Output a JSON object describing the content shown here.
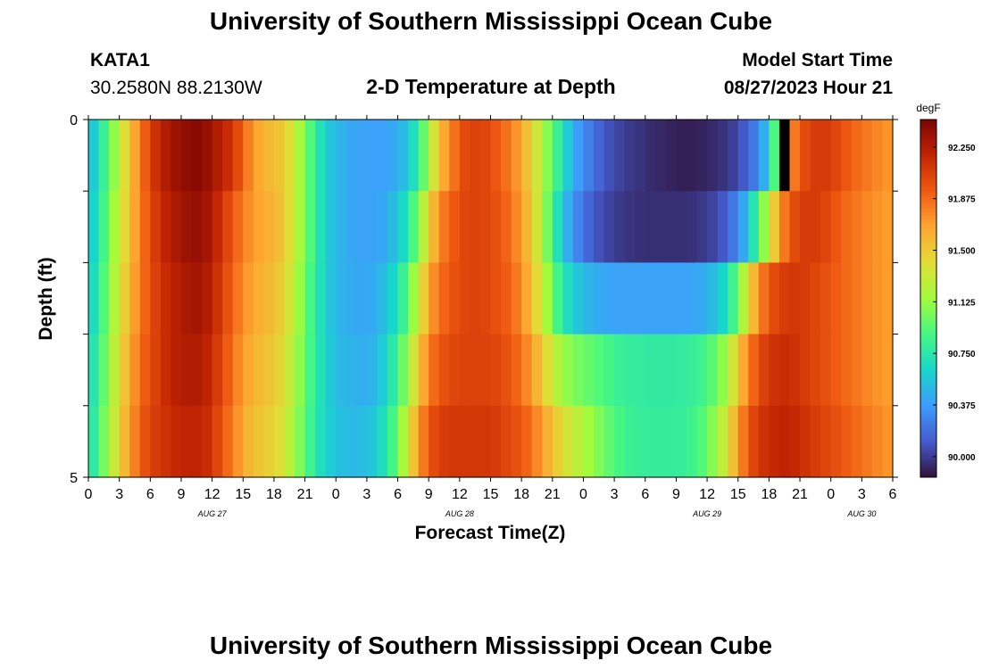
{
  "header": {
    "title": "University of Southern Mississippi Ocean Cube",
    "station_id": "KATA1",
    "station_coords": "30.2580N  88.2130W",
    "chart_heading": "2-D Temperature at Depth",
    "model_start_label": "Model Start Time",
    "model_start_value": "08/27/2023 Hour 21"
  },
  "footer": {
    "title": "University of Southern Mississippi Ocean Cube"
  },
  "chart_data": {
    "type": "heatmap",
    "title": "2-D Temperature at Depth",
    "xlabel": "Forecast Time(Z)",
    "ylabel": "Depth (ft)",
    "x_start_hour": 0,
    "x_end_hour": 78,
    "x_tick_labels": [
      "0",
      "3",
      "6",
      "9",
      "12",
      "15",
      "18",
      "21",
      "0",
      "3",
      "6",
      "9",
      "12",
      "15",
      "18",
      "21",
      "0",
      "3",
      "6",
      "9",
      "12",
      "15",
      "18",
      "21",
      "0",
      "3",
      "6"
    ],
    "day_labels": [
      {
        "label": "AUG 27",
        "hour": 12
      },
      {
        "label": "AUG 28",
        "hour": 36
      },
      {
        "label": "AUG 29",
        "hour": 60
      },
      {
        "label": "AUG 30",
        "hour": 75
      }
    ],
    "y_tick_labels": [
      "0",
      "5"
    ],
    "ylim": [
      0,
      5
    ],
    "depth_levels": 5,
    "colorbar": {
      "unit": "degF",
      "min": 89.85,
      "max": 92.45,
      "tick_labels": [
        "92.250",
        "91.875",
        "91.500",
        "91.125",
        "90.750",
        "90.375",
        "90.000"
      ]
    },
    "anchor_hours": [
      0,
      1,
      2,
      3,
      4,
      5,
      6,
      7,
      8,
      9,
      10,
      11,
      12,
      13,
      14,
      15,
      16,
      17,
      18,
      19,
      20,
      21,
      22,
      23,
      24,
      25,
      26,
      27,
      28,
      29,
      30,
      31,
      32,
      33,
      34,
      35,
      36,
      37,
      38,
      39,
      40,
      41,
      42,
      43,
      44,
      45,
      46,
      47,
      48,
      49,
      50,
      51,
      52,
      53,
      54,
      55,
      56,
      57,
      58,
      59,
      60,
      61,
      62,
      63,
      64,
      65,
      66,
      67,
      68,
      69,
      70,
      71,
      72,
      73,
      74,
      75,
      76,
      77,
      78
    ],
    "series": [
      {
        "name": "depth 0-1 ft",
        "values": [
          90.45,
          90.7,
          90.95,
          91.25,
          91.55,
          91.8,
          92.05,
          92.2,
          92.3,
          92.35,
          92.4,
          92.4,
          92.3,
          92.2,
          92.1,
          91.9,
          91.7,
          91.6,
          91.55,
          91.5,
          91.3,
          91.05,
          90.8,
          90.6,
          90.5,
          90.45,
          90.4,
          90.4,
          90.38,
          90.4,
          90.45,
          90.55,
          90.8,
          91.15,
          91.55,
          91.75,
          91.95,
          92.05,
          92.05,
          92.0,
          91.9,
          91.8,
          91.65,
          91.45,
          91.2,
          90.95,
          90.7,
          90.45,
          90.3,
          90.2,
          90.1,
          90.05,
          90.0,
          89.98,
          89.95,
          89.93,
          89.92,
          89.9,
          89.9,
          89.9,
          89.92,
          89.95,
          89.98,
          90.05,
          90.15,
          90.3,
          90.6,
          91.2,
          91.7,
          91.95,
          92.05,
          92.1,
          92.05,
          92.0,
          91.9,
          91.85,
          91.8,
          91.75,
          91.7
        ]
      },
      {
        "name": "depth 1-2 ft",
        "values": [
          90.5,
          90.75,
          91.0,
          91.3,
          91.55,
          91.8,
          92.0,
          92.15,
          92.25,
          92.3,
          92.35,
          92.35,
          92.25,
          92.1,
          91.95,
          91.8,
          91.7,
          91.65,
          91.6,
          91.5,
          91.3,
          91.05,
          90.8,
          90.6,
          90.5,
          90.45,
          90.4,
          90.4,
          90.4,
          90.45,
          90.55,
          90.75,
          91.05,
          91.45,
          91.75,
          91.9,
          92.0,
          92.05,
          92.05,
          92.0,
          91.95,
          91.85,
          91.7,
          91.5,
          91.2,
          90.85,
          90.55,
          90.35,
          90.2,
          90.1,
          90.05,
          90.0,
          89.98,
          89.96,
          89.95,
          89.95,
          89.95,
          89.95,
          89.95,
          89.97,
          90.0,
          90.05,
          90.15,
          90.3,
          90.55,
          90.9,
          91.3,
          91.7,
          91.95,
          92.05,
          92.1,
          92.05,
          92.0,
          91.9,
          91.85,
          91.8,
          91.75,
          91.7,
          91.7
        ]
      },
      {
        "name": "depth 2-3 ft",
        "values": [
          90.55,
          90.8,
          91.05,
          91.35,
          91.6,
          91.8,
          92.0,
          92.1,
          92.2,
          92.25,
          92.3,
          92.3,
          92.2,
          92.05,
          91.9,
          91.75,
          91.65,
          91.6,
          91.55,
          91.45,
          91.25,
          91.0,
          90.78,
          90.6,
          90.5,
          90.45,
          90.42,
          90.42,
          90.45,
          90.55,
          90.7,
          90.95,
          91.3,
          91.65,
          91.85,
          91.95,
          92.0,
          92.05,
          92.05,
          92.0,
          91.95,
          91.9,
          91.75,
          91.55,
          91.3,
          91.0,
          90.75,
          90.6,
          90.5,
          90.45,
          90.42,
          90.4,
          90.4,
          90.4,
          90.4,
          90.4,
          90.4,
          90.4,
          90.4,
          90.42,
          90.45,
          90.55,
          90.7,
          91.0,
          91.4,
          91.75,
          91.95,
          92.05,
          92.1,
          92.1,
          92.05,
          92.0,
          91.95,
          91.9,
          91.85,
          91.8,
          91.75,
          91.7,
          91.7
        ]
      },
      {
        "name": "depth 3-4 ft",
        "values": [
          90.6,
          90.85,
          91.1,
          91.4,
          91.65,
          91.85,
          92.0,
          92.1,
          92.2,
          92.25,
          92.25,
          92.25,
          92.15,
          92.0,
          91.85,
          91.7,
          91.6,
          91.55,
          91.5,
          91.4,
          91.2,
          90.98,
          90.78,
          90.62,
          90.52,
          90.48,
          90.45,
          90.45,
          90.5,
          90.65,
          90.85,
          91.15,
          91.5,
          91.8,
          91.95,
          92.0,
          92.05,
          92.05,
          92.05,
          92.05,
          92.0,
          91.95,
          91.85,
          91.7,
          91.5,
          91.3,
          91.15,
          91.05,
          91.0,
          90.95,
          90.9,
          90.85,
          90.8,
          90.8,
          90.78,
          90.78,
          90.78,
          90.78,
          90.8,
          90.82,
          90.88,
          91.0,
          91.2,
          91.5,
          91.8,
          92.0,
          92.1,
          92.15,
          92.15,
          92.1,
          92.05,
          92.0,
          91.95,
          91.9,
          91.85,
          91.8,
          91.75,
          91.7,
          91.7
        ]
      },
      {
        "name": "depth 4-5 ft",
        "values": [
          90.65,
          90.9,
          91.15,
          91.45,
          91.7,
          91.9,
          92.05,
          92.1,
          92.15,
          92.2,
          92.2,
          92.2,
          92.1,
          91.95,
          91.8,
          91.65,
          91.55,
          91.5,
          91.45,
          91.35,
          91.15,
          90.95,
          90.75,
          90.62,
          90.55,
          90.5,
          90.5,
          90.52,
          90.6,
          90.75,
          91.0,
          91.35,
          91.7,
          91.95,
          92.05,
          92.1,
          92.1,
          92.1,
          92.1,
          92.1,
          92.05,
          92.0,
          91.95,
          91.85,
          91.7,
          91.55,
          91.4,
          91.3,
          91.2,
          91.1,
          91.0,
          90.92,
          90.85,
          90.82,
          90.8,
          90.8,
          90.8,
          90.8,
          90.82,
          90.88,
          90.98,
          91.15,
          91.4,
          91.7,
          91.95,
          92.1,
          92.15,
          92.2,
          92.2,
          92.15,
          92.1,
          92.05,
          92.0,
          91.95,
          91.9,
          91.85,
          91.8,
          91.75,
          91.7
        ]
      }
    ],
    "missing_cells": [
      {
        "depth_index": 0,
        "hour": 67
      }
    ]
  }
}
